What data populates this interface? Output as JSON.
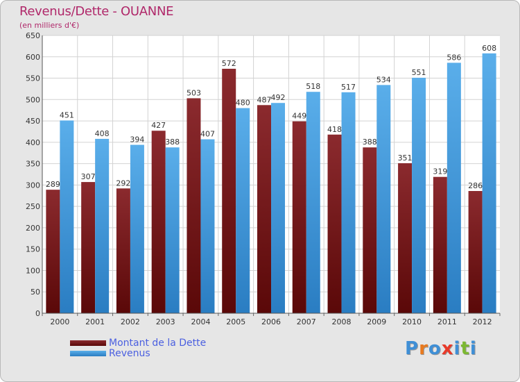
{
  "colors": {
    "dette_top": "#8b2a2e",
    "dette_bottom": "#5a0808",
    "revenus_top": "#5aaeea",
    "revenus_bottom": "#2a7dc2",
    "title": "#b0286a",
    "legend_text": "#4a5fe0"
  },
  "logo": {
    "text": "Proxiti",
    "letters": [
      {
        "ch": "P",
        "color": "#3f8fd6"
      },
      {
        "ch": "r",
        "color": "#e87a1f"
      },
      {
        "ch": "o",
        "color": "#3f8fd6"
      },
      {
        "ch": "x",
        "color": "#e83a2a"
      },
      {
        "ch": "i",
        "color": "#3f8fd6"
      },
      {
        "ch": "t",
        "color": "#7cb832"
      },
      {
        "ch": "i",
        "color": "#3f8fd6"
      }
    ]
  },
  "chart_data": {
    "type": "bar",
    "title": "Revenus/Dette - OUANNE",
    "subtitle": "(en milliers d'€)",
    "xlabel": "",
    "ylabel": "",
    "ylim": [
      0,
      650
    ],
    "yticks": [
      0,
      50,
      100,
      150,
      200,
      250,
      300,
      350,
      400,
      450,
      500,
      550,
      600,
      650
    ],
    "grid": true,
    "legend_position": "bottom-left",
    "categories": [
      "2000",
      "2001",
      "2002",
      "2003",
      "2004",
      "2005",
      "2006",
      "2007",
      "2008",
      "2009",
      "2010",
      "2011",
      "2012"
    ],
    "series": [
      {
        "name": "Montant de la Dette",
        "values": [
          289,
          307,
          292,
          427,
          503,
          572,
          487,
          449,
          418,
          388,
          351,
          319,
          286
        ]
      },
      {
        "name": "Revenus",
        "values": [
          451,
          408,
          394,
          388,
          407,
          480,
          492,
          518,
          517,
          534,
          551,
          586,
          608
        ]
      }
    ]
  }
}
